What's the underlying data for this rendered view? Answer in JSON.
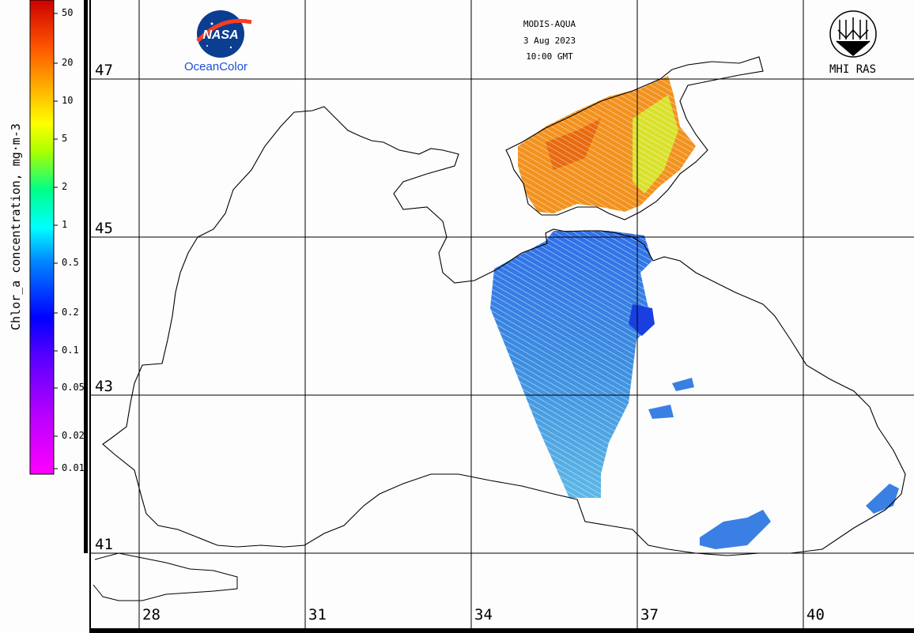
{
  "header": {
    "sensor": "MODIS-AQUA",
    "date": "3 Aug 2023",
    "time": "10:00 GMT"
  },
  "logos": {
    "nasa_badge": "NASA",
    "ocean_color_label": "OceanColor",
    "mhi_label": "MHI RAS"
  },
  "colorbar": {
    "title": "Chlor_a concentration, mg·m-3",
    "ticks": [
      "50",
      "20",
      "10",
      "5",
      "2",
      "1",
      "0.5",
      "0.2",
      "0.1",
      "0.05",
      "0.02",
      "0.01"
    ],
    "scale": "log",
    "colors": [
      "#ff00ff",
      "#8800ff",
      "#0000ff",
      "#00aaff",
      "#00ffff",
      "#00ff66",
      "#aaff00",
      "#ffff00",
      "#ffaa00",
      "#ff5500",
      "#cc0000"
    ]
  },
  "grid": {
    "latitudes": [
      "47",
      "45",
      "43",
      "41"
    ],
    "longitudes": [
      "28",
      "31",
      "34",
      "37",
      "40"
    ]
  },
  "colors": {
    "land": "#fdfdfd",
    "coast": "#000000",
    "grid": "#000000",
    "azov_high": "#f08a1e",
    "blacksea_low": "#3d8ee0"
  }
}
